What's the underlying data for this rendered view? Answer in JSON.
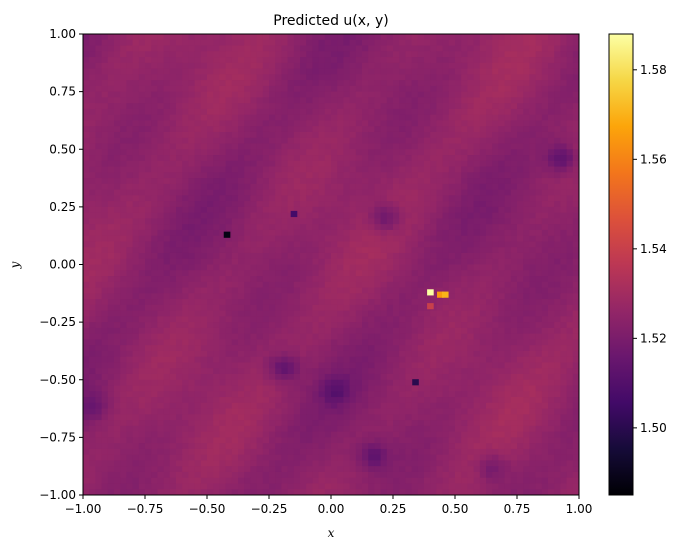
{
  "chart_data": {
    "type": "heatmap",
    "title": "Predicted u(x, y)",
    "xlabel": "x",
    "ylabel": "y",
    "xlim": [
      -1.0,
      1.0
    ],
    "ylim": [
      -1.0,
      1.0
    ],
    "x_ticks": [
      "−1.00",
      "−0.75",
      "−0.50",
      "−0.25",
      "0.00",
      "0.25",
      "0.50",
      "0.75",
      "1.00"
    ],
    "y_ticks": [
      "1.00",
      "0.75",
      "0.50",
      "0.25",
      "0.00",
      "−0.25",
      "−0.50",
      "−0.75",
      "−1.00"
    ],
    "colorbar": {
      "colormap": "inferno",
      "range": [
        1.485,
        1.588
      ],
      "ticks": [
        "1.58",
        "1.56",
        "1.54",
        "1.52",
        "1.50"
      ],
      "tick_values": [
        1.58,
        1.56,
        1.54,
        1.52,
        1.5
      ]
    },
    "background_value": 1.525,
    "grid": false,
    "features": [
      {
        "x": 0.22,
        "y": 0.2,
        "value": 1.513,
        "kind": "dark patch"
      },
      {
        "x": -0.19,
        "y": -0.45,
        "value": 1.512,
        "kind": "dark patch"
      },
      {
        "x": 0.17,
        "y": -0.83,
        "value": 1.514,
        "kind": "dark patch"
      },
      {
        "x": 0.93,
        "y": 0.46,
        "value": 1.512,
        "kind": "dark patch"
      },
      {
        "x": 0.02,
        "y": -0.55,
        "value": 1.516,
        "kind": "dark patch"
      },
      {
        "x": -0.96,
        "y": -0.62,
        "value": 1.517,
        "kind": "dark patch"
      },
      {
        "x": 0.65,
        "y": -0.88,
        "value": 1.516,
        "kind": "dark patch"
      },
      {
        "x": -0.42,
        "y": 0.13,
        "value": 1.488,
        "kind": "spot"
      },
      {
        "x": 0.34,
        "y": -0.51,
        "value": 1.5,
        "kind": "spot"
      },
      {
        "x": -0.15,
        "y": 0.22,
        "value": 1.506,
        "kind": "spot"
      },
      {
        "x": 0.4,
        "y": -0.12,
        "value": 1.588,
        "kind": "spot"
      },
      {
        "x": 0.44,
        "y": -0.13,
        "value": 1.565,
        "kind": "spot"
      },
      {
        "x": 0.46,
        "y": -0.13,
        "value": 1.57,
        "kind": "spot"
      },
      {
        "x": 0.4,
        "y": -0.18,
        "value": 1.54,
        "kind": "spot"
      }
    ]
  }
}
